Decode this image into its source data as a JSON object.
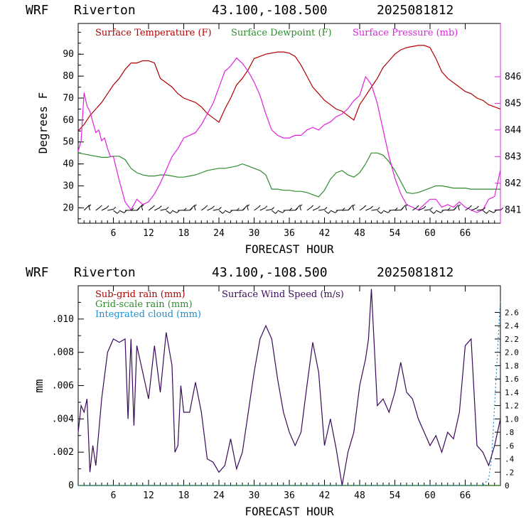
{
  "header": {
    "model": "WRF",
    "station": "Riverton",
    "coords": "43.100,-108.500",
    "run": "2025081812"
  },
  "colors": {
    "temperature": "#b00000",
    "dewpoint": "#2e8b2e",
    "pressure": "#e020e0",
    "subgrid_rain": "#b00000",
    "grid_rain": "#2e8b2e",
    "cloud": "#1a8fd0",
    "wind": "#3a0a5a"
  },
  "chart_data": [
    {
      "type": "line",
      "xlabel": "FORECAST HOUR",
      "ylabel": "Degrees F",
      "xlim": [
        0,
        72
      ],
      "ylim": [
        13,
        104
      ],
      "ylim_right": [
        840.5,
        848
      ],
      "x_ticks": [
        "6",
        "12",
        "18",
        "24",
        "30",
        "36",
        "42",
        "48",
        "54",
        "60",
        "66"
      ],
      "y_ticks": [
        "20",
        "30",
        "40",
        "50",
        "60",
        "70",
        "80",
        "90"
      ],
      "y_ticks_right": [
        "841",
        "842",
        "843",
        "844",
        "845",
        "846"
      ],
      "series": [
        {
          "name": "Surface Temperature (F)",
          "axis": "left",
          "x": [
            0,
            1,
            2,
            3,
            4,
            5,
            6,
            7,
            8,
            9,
            10,
            11,
            12,
            13,
            14,
            15,
            16,
            17,
            18,
            19,
            20,
            21,
            22,
            23,
            24,
            25,
            26,
            27,
            28,
            29,
            30,
            31,
            32,
            33,
            34,
            35,
            36,
            37,
            38,
            39,
            40,
            41,
            42,
            43,
            44,
            45,
            46,
            47,
            48,
            49,
            50,
            51,
            52,
            53,
            54,
            55,
            56,
            57,
            58,
            59,
            60,
            61,
            62,
            63,
            64,
            65,
            66,
            67,
            68,
            69,
            70,
            71,
            72
          ],
          "values": [
            55,
            58,
            62,
            65,
            68,
            72,
            76,
            79,
            83,
            86,
            86,
            87,
            87,
            86,
            79,
            77,
            75,
            72,
            70,
            69,
            68,
            66,
            63,
            61,
            59,
            65,
            70,
            76,
            79,
            83,
            88,
            89,
            90,
            90.5,
            91,
            91,
            90.5,
            89,
            85,
            80,
            75,
            72,
            69,
            67,
            65,
            64,
            62,
            60,
            67,
            71,
            75,
            79,
            84,
            87,
            90,
            92,
            93,
            93.5,
            94,
            94,
            93,
            88,
            82,
            79,
            77,
            75,
            73,
            72,
            70,
            69,
            67,
            66,
            65
          ]
        },
        {
          "name": "Surface Dewpoint (F)",
          "axis": "left",
          "x": [
            0,
            1,
            2,
            3,
            4,
            5,
            6,
            7,
            8,
            9,
            10,
            11,
            12,
            13,
            14,
            15,
            16,
            17,
            18,
            19,
            20,
            21,
            22,
            23,
            24,
            25,
            26,
            27,
            28,
            29,
            30,
            31,
            32,
            33,
            34,
            35,
            36,
            37,
            38,
            39,
            40,
            41,
            42,
            43,
            44,
            45,
            46,
            47,
            48,
            49,
            50,
            51,
            52,
            53,
            54,
            55,
            56,
            57,
            58,
            59,
            60,
            61,
            62,
            63,
            64,
            65,
            66,
            67,
            68,
            69,
            70,
            71,
            72
          ],
          "values": [
            45,
            44.5,
            44,
            43.5,
            43,
            43,
            43.5,
            43.5,
            42,
            38,
            36,
            35,
            34.5,
            34.5,
            35,
            35,
            34.5,
            34,
            34,
            34.5,
            35,
            36,
            37,
            37.5,
            38,
            38,
            38.5,
            39,
            40,
            39,
            38,
            37,
            35,
            28.5,
            28.5,
            28,
            28,
            27.5,
            27.5,
            27,
            26,
            25,
            28,
            33,
            36,
            37,
            35,
            34,
            36,
            40,
            45,
            45,
            44,
            41,
            37,
            32,
            27,
            26.5,
            27,
            28,
            29,
            30,
            30,
            29.5,
            29,
            29,
            29,
            28.5,
            28.5,
            28.5,
            28.5,
            28.5,
            28.5
          ]
        },
        {
          "name": "Surface Pressure (mb)",
          "axis": "right",
          "x": [
            0,
            0.5,
            1,
            1.5,
            2,
            2.5,
            3,
            3.5,
            4,
            4.5,
            5,
            5.5,
            6,
            7,
            8,
            9,
            10,
            11,
            12,
            13,
            14,
            15,
            16,
            17,
            18,
            19,
            20,
            21,
            22,
            23,
            24,
            25,
            26,
            27,
            28,
            29,
            30,
            31,
            32,
            33,
            34,
            35,
            36,
            37,
            38,
            39,
            40,
            41,
            42,
            43,
            44,
            45,
            46,
            47,
            48,
            49,
            50,
            51,
            52,
            53,
            54,
            55,
            56,
            57,
            58,
            59,
            60,
            61,
            62,
            63,
            64,
            65,
            66,
            67,
            68,
            69,
            70,
            71,
            72
          ],
          "values": [
            843.2,
            843.6,
            845.4,
            844.9,
            844.7,
            844.3,
            843.9,
            844.0,
            843.6,
            843.7,
            843.3,
            843.0,
            843.0,
            842.1,
            841.3,
            841.0,
            841.4,
            841.2,
            841.3,
            841.6,
            842.0,
            842.5,
            843.0,
            843.3,
            843.7,
            843.8,
            843.9,
            844.2,
            844.6,
            845.0,
            845.6,
            846.2,
            846.4,
            846.7,
            846.5,
            846.2,
            845.8,
            845.3,
            844.6,
            844.0,
            843.8,
            843.7,
            843.7,
            843.8,
            843.8,
            844.0,
            844.1,
            844.0,
            844.2,
            844.3,
            844.5,
            844.6,
            844.8,
            845.1,
            845.3,
            846.0,
            845.7,
            845.0,
            844.0,
            843.0,
            842.2,
            841.6,
            841.2,
            841.1,
            841.0,
            841.2,
            841.4,
            841.4,
            841.1,
            841.2,
            841.1,
            841.3,
            841.1,
            841.0,
            840.9,
            841.0,
            841.4,
            841.5,
            842.5
          ]
        }
      ],
      "wind_barbs": true
    },
    {
      "type": "line",
      "xlabel": "FORECAST HOUR",
      "ylabel": "mm",
      "xlim": [
        0,
        72
      ],
      "ylim": [
        0,
        0.012
      ],
      "ylim_right": [
        0,
        3
      ],
      "x_ticks": [
        "6",
        "12",
        "18",
        "24",
        "30",
        "36",
        "42",
        "48",
        "54",
        "60",
        "66"
      ],
      "y_ticks": [
        "0",
        ".002",
        ".004",
        ".006",
        ".008",
        ".010"
      ],
      "y_ticks_right": [
        "0",
        ".2",
        ".4",
        ".6",
        ".8",
        "1.0",
        "1.2",
        "1.4",
        "1.6",
        "1.8",
        "2.0",
        "2.2",
        "2.4",
        "2.6"
      ],
      "series": [
        {
          "name": "Sub-grid rain (mm)",
          "axis": "left",
          "x": [
            0,
            72
          ],
          "values": [
            0,
            0
          ]
        },
        {
          "name": "Grid-scale rain (mm)",
          "axis": "left",
          "x": [
            0,
            72
          ],
          "values": [
            0,
            0
          ]
        },
        {
          "name": "Integrated cloud (mm)",
          "axis": "right",
          "x": [
            0,
            1,
            2,
            3,
            4,
            5,
            6,
            7,
            8,
            9,
            10,
            11,
            12,
            13,
            14,
            15,
            16,
            17,
            18,
            19,
            20,
            21,
            22,
            23,
            24,
            25,
            26,
            27,
            28,
            29,
            30,
            31,
            32,
            33,
            34,
            35,
            36,
            37,
            38,
            39,
            40,
            41,
            42,
            43,
            44,
            45,
            46,
            47,
            48,
            49,
            50,
            51,
            52,
            53,
            54,
            55,
            56,
            57,
            58,
            59,
            60,
            61,
            62,
            63,
            64,
            65,
            66,
            67,
            68,
            69,
            70,
            70.5,
            71,
            71.5,
            72
          ],
          "values": [
            0,
            0,
            0,
            0,
            0,
            0,
            0,
            0,
            0,
            0,
            0,
            0,
            0,
            0,
            0,
            0,
            0,
            0,
            0,
            0,
            0,
            0,
            0,
            0,
            0,
            0,
            0,
            0,
            0,
            0,
            0,
            0,
            0,
            0,
            0,
            0,
            0,
            0,
            0,
            0,
            0,
            0,
            0,
            0,
            0,
            0,
            0,
            0,
            0,
            0,
            0,
            0,
            0,
            0,
            0,
            0,
            0,
            0,
            0,
            0,
            0,
            0,
            0,
            0,
            0,
            0,
            0,
            0,
            0,
            0,
            0.1,
            0.4,
            1.2,
            2.0,
            2.8
          ]
        },
        {
          "name": "Surface Wind Speed (m/s)",
          "axis": "right",
          "x": [
            0,
            0.5,
            1,
            1.5,
            2,
            2.5,
            3,
            3.5,
            4,
            5,
            6,
            7,
            8,
            8.5,
            9,
            9.5,
            10,
            11,
            12,
            13,
            14,
            15,
            16,
            16.5,
            17,
            17.5,
            18,
            19,
            20,
            21,
            22,
            23,
            24,
            25,
            26,
            27,
            28,
            29,
            30,
            31,
            32,
            33,
            34,
            35,
            36,
            37,
            38,
            39,
            40,
            41,
            42,
            43,
            44,
            45,
            46,
            47,
            48,
            49,
            49.5,
            50,
            51,
            52,
            53,
            54,
            55,
            56,
            57,
            58,
            59,
            60,
            61,
            62,
            63,
            64,
            65,
            66,
            67,
            68,
            69,
            70,
            71,
            72
          ],
          "values": [
            0.8,
            1.2,
            1.1,
            1.3,
            0.2,
            0.6,
            0.3,
            0.8,
            1.3,
            2.0,
            2.2,
            2.15,
            2.2,
            1.0,
            2.2,
            0.9,
            2.1,
            1.7,
            1.3,
            2.1,
            1.4,
            2.3,
            1.8,
            0.5,
            0.6,
            1.5,
            1.1,
            1.1,
            1.55,
            1.1,
            0.4,
            0.35,
            0.2,
            0.3,
            0.7,
            0.25,
            0.5,
            1.1,
            1.7,
            2.2,
            2.4,
            2.2,
            1.6,
            1.1,
            0.8,
            0.6,
            0.8,
            1.5,
            2.15,
            1.7,
            0.6,
            1.0,
            0.55,
            0.0,
            0.5,
            0.8,
            1.5,
            1.9,
            2.2,
            2.95,
            1.2,
            1.3,
            1.1,
            1.4,
            1.85,
            1.4,
            1.3,
            1.0,
            0.8,
            0.6,
            0.75,
            0.5,
            0.8,
            0.7,
            1.1,
            2.1,
            2.2,
            0.6,
            0.5,
            0.3,
            0.6,
            1.0
          ]
        }
      ]
    }
  ]
}
